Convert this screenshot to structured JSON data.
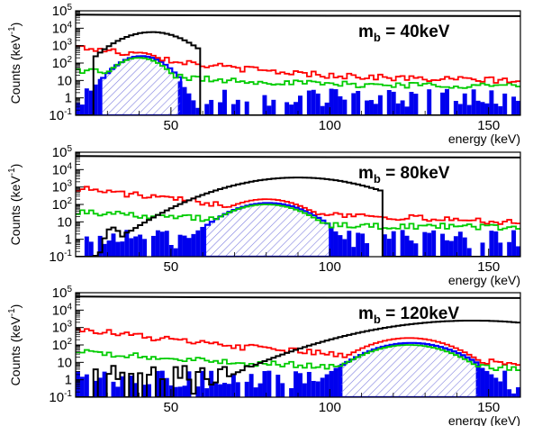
{
  "chart_data": [
    {
      "type": "line",
      "annotation": {
        "main": "m",
        "sub": "b",
        "rest": " = 40keV"
      },
      "peak_keV": 40,
      "xlabel": "energy (keV)",
      "ylabel": {
        "main": "Counts (keV",
        "sup": "-1",
        "close": ")"
      },
      "xlim": [
        20,
        160
      ],
      "ylim_exp": [
        -1,
        5
      ],
      "y_scale": "log",
      "xticks": [
        50,
        100,
        150
      ],
      "yticks": [
        {
          "value": 0.1,
          "label": {
            "base": "10",
            "sup": "-1"
          }
        },
        {
          "value": 1,
          "label": {
            "base": "1",
            "sup": ""
          }
        },
        {
          "value": 10,
          "label": {
            "base": "10",
            "sup": ""
          }
        },
        {
          "value": 100,
          "label": {
            "base": "10",
            "sup": "2"
          }
        },
        {
          "value": 1000,
          "label": {
            "base": "10",
            "sup": "3"
          }
        },
        {
          "value": 10000,
          "label": {
            "base": "10",
            "sup": "4"
          }
        },
        {
          "value": 100000,
          "label": {
            "base": "10",
            "sup": "5"
          }
        }
      ],
      "series": [
        {
          "color": "#000000",
          "points": [
            [
              20,
              60000
            ],
            [
              60,
              55000
            ],
            [
              100,
              52000
            ],
            [
              160,
              50000
            ]
          ],
          "peak": {
            "x": 44,
            "height": 6000,
            "width": 7,
            "floor_start": 25,
            "floor_end": 59
          }
        },
        {
          "color": "#ff0000",
          "points": [
            [
              20,
              900
            ],
            [
              40,
              300
            ],
            [
              60,
              80
            ],
            [
              80,
              35
            ],
            [
              100,
              20
            ],
            [
              130,
              12
            ],
            [
              160,
              10
            ]
          ],
          "peak": {
            "x": 40,
            "height": 400,
            "width": 5
          }
        },
        {
          "color": "#00cc00",
          "points": [
            [
              20,
              40
            ],
            [
              40,
              25
            ],
            [
              60,
              12
            ],
            [
              100,
              6
            ],
            [
              160,
              5
            ]
          ],
          "peak": {
            "x": 40,
            "height": 200,
            "width": 5
          }
        },
        {
          "color": "#0000ff",
          "points": [
            [
              20,
              2
            ],
            [
              160,
              2
            ]
          ],
          "peak": {
            "x": 40,
            "height": 250,
            "width": 5
          }
        }
      ]
    },
    {
      "type": "line",
      "annotation": {
        "main": "m",
        "sub": "b",
        "rest": " = 80keV"
      },
      "peak_keV": 80,
      "xlabel": "energy (keV)",
      "ylabel": {
        "main": "Counts (keV",
        "sup": "-1",
        "close": ")"
      },
      "xlim": [
        20,
        160
      ],
      "ylim_exp": [
        -1,
        5
      ],
      "y_scale": "log",
      "xticks": [
        50,
        100,
        150
      ],
      "yticks": [
        {
          "value": 0.1,
          "label": {
            "base": "10",
            "sup": "-1"
          }
        },
        {
          "value": 1,
          "label": {
            "base": "1",
            "sup": ""
          }
        },
        {
          "value": 10,
          "label": {
            "base": "10",
            "sup": ""
          }
        },
        {
          "value": 100,
          "label": {
            "base": "10",
            "sup": "2"
          }
        },
        {
          "value": 1000,
          "label": {
            "base": "10",
            "sup": "3"
          }
        },
        {
          "value": 10000,
          "label": {
            "base": "10",
            "sup": "4"
          }
        },
        {
          "value": 100000,
          "label": {
            "base": "10",
            "sup": "5"
          }
        }
      ],
      "series": [
        {
          "color": "#000000",
          "points": [
            [
              20,
              60000
            ],
            [
              60,
              55000
            ],
            [
              100,
              52000
            ],
            [
              160,
              50000
            ]
          ],
          "peak": {
            "x": 90,
            "height": 3500,
            "width": 14,
            "floor_start": 25,
            "floor_end": 117
          }
        },
        {
          "color": "#ff0000",
          "points": [
            [
              20,
              900
            ],
            [
              50,
              200
            ],
            [
              80,
              60
            ],
            [
              100,
              30
            ],
            [
              130,
              15
            ],
            [
              160,
              10
            ]
          ],
          "peak": {
            "x": 80,
            "height": 200,
            "width": 8
          }
        },
        {
          "color": "#00cc00",
          "points": [
            [
              20,
              40
            ],
            [
              50,
              20
            ],
            [
              80,
              10
            ],
            [
              100,
              6
            ],
            [
              160,
              5
            ]
          ],
          "peak": {
            "x": 80,
            "height": 100,
            "width": 8
          }
        },
        {
          "color": "#0000ff",
          "points": [
            [
              20,
              2
            ],
            [
              160,
              2
            ]
          ],
          "peak": {
            "x": 80,
            "height": 120,
            "width": 8
          }
        }
      ]
    },
    {
      "type": "line",
      "annotation": {
        "main": "m",
        "sub": "b",
        "rest": " = 120keV"
      },
      "peak_keV": 120,
      "xlabel": "energy (keV)",
      "ylabel": {
        "main": "Counts (keV",
        "sup": "-1",
        "close": ")"
      },
      "xlim": [
        20,
        160
      ],
      "ylim_exp": [
        -1,
        5
      ],
      "y_scale": "log",
      "xticks": [
        50,
        100,
        150
      ],
      "yticks": [
        {
          "value": 0.1,
          "label": {
            "base": "10",
            "sup": "-1"
          }
        },
        {
          "value": 1,
          "label": {
            "base": "1",
            "sup": ""
          }
        },
        {
          "value": 10,
          "label": {
            "base": "10",
            "sup": ""
          }
        },
        {
          "value": 100,
          "label": {
            "base": "10",
            "sup": "2"
          }
        },
        {
          "value": 1000,
          "label": {
            "base": "10",
            "sup": "3"
          }
        },
        {
          "value": 10000,
          "label": {
            "base": "10",
            "sup": "4"
          }
        },
        {
          "value": 100000,
          "label": {
            "base": "10",
            "sup": "5"
          }
        }
      ],
      "series": [
        {
          "color": "#000000",
          "points": [
            [
              20,
              60000
            ],
            [
              60,
              55000
            ],
            [
              100,
              52000
            ],
            [
              160,
              50000
            ]
          ],
          "peak": {
            "x": 145,
            "height": 2500,
            "width": 20,
            "floor_start": 25,
            "floor_end": 160
          }
        },
        {
          "color": "#ff0000",
          "points": [
            [
              20,
              900
            ],
            [
              60,
              120
            ],
            [
              100,
              30
            ],
            [
              140,
              12
            ],
            [
              160,
              10
            ]
          ],
          "peak": {
            "x": 125,
            "height": 250,
            "width": 9
          }
        },
        {
          "color": "#00cc00",
          "points": [
            [
              20,
              40
            ],
            [
              60,
              12
            ],
            [
              100,
              6
            ],
            [
              160,
              5
            ]
          ],
          "peak": {
            "x": 125,
            "height": 100,
            "width": 9
          }
        },
        {
          "color": "#0000ff",
          "points": [
            [
              20,
              2
            ],
            [
              160,
              2
            ]
          ],
          "peak": {
            "x": 125,
            "height": 130,
            "width": 9
          }
        }
      ]
    }
  ]
}
